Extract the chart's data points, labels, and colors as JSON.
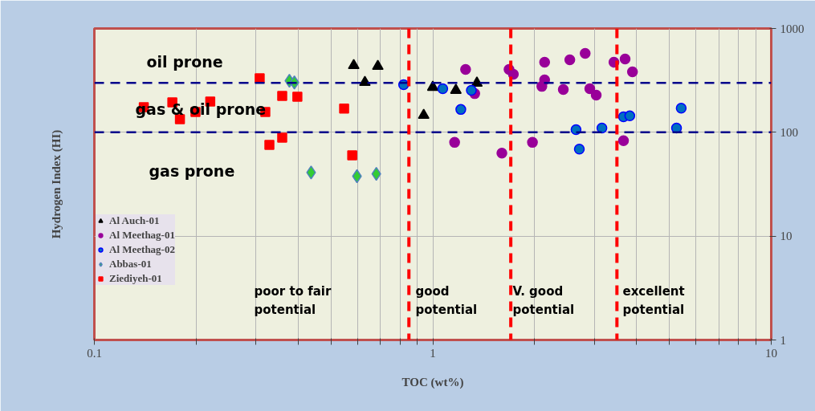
{
  "chart_data": {
    "type": "scatter",
    "xlabel": "TOC (wt%)",
    "ylabel": "Hydrogen Index (HI)",
    "log": "xy",
    "grid": true,
    "legend": "left",
    "xlim": [
      0.1,
      10
    ],
    "ylim": [
      1,
      1000
    ],
    "xticks": [
      0.1,
      {
        "value": 0.2,
        "label": null
      },
      {
        "value": 0.3,
        "label": null
      },
      {
        "value": 0.4,
        "label": null
      },
      {
        "value": 0.5,
        "label": null
      },
      {
        "value": 0.6,
        "label": null
      },
      {
        "value": 0.7,
        "label": null
      },
      {
        "value": 0.8,
        "label": null
      },
      {
        "value": 0.9,
        "label": null
      },
      1,
      {
        "value": 2,
        "label": null
      },
      {
        "value": 3,
        "label": null
      },
      {
        "value": 4,
        "label": null
      },
      {
        "value": 5,
        "label": null
      },
      {
        "value": 6,
        "label": null
      },
      {
        "value": 7,
        "label": null
      },
      {
        "value": 8,
        "label": null
      },
      {
        "value": 9,
        "label": null
      },
      10
    ],
    "yticks": [
      1,
      10,
      100,
      1000
    ],
    "series": [
      {
        "name": "Al Auch-01",
        "color": "#000000",
        "marker": "triangle",
        "x": [
          0.584,
          0.688,
          0.63,
          0.94,
          1.0,
          1.17,
          1.35
        ],
        "values": [
          440,
          433,
          303,
          146,
          272,
          254,
          298
        ]
      },
      {
        "name": "Al Meethag-01",
        "color": "#990099",
        "marker": "circle",
        "x": [
          1.25,
          1.68,
          1.73,
          2.14,
          2.54,
          2.82,
          3.43,
          3.7,
          3.89,
          2.14,
          2.1,
          2.43,
          2.91,
          3.04,
          1.33,
          1.16,
          1.6,
          1.97,
          3.66
        ],
        "values": [
          403,
          403,
          362,
          473,
          499,
          575,
          473,
          508,
          382,
          320,
          277,
          258,
          263,
          228,
          236,
          80,
          63,
          80,
          83
        ]
      },
      {
        "name": "Al Meethag-02",
        "color": "#0070c0",
        "marker": "circle",
        "x": [
          0.82,
          1.07,
          1.3,
          1.21,
          2.65,
          2.71,
          3.16,
          3.66,
          3.82,
          5.42,
          5.25
        ],
        "values": [
          288,
          263,
          254,
          166,
          106,
          69,
          110,
          141,
          144,
          171,
          110
        ]
      },
      {
        "name": "Abbas-01",
        "color": "#33cc33",
        "marker": "diamond",
        "x": [
          0.377,
          0.39,
          0.437,
          0.597,
          0.681
        ],
        "values": [
          314,
          302,
          41,
          37.8,
          39.8
        ]
      },
      {
        "name": "Ziediyeh-01",
        "color": "#ff0000",
        "marker": "square",
        "x": [
          0.308,
          0.359,
          0.398,
          0.547,
          0.17,
          0.22,
          0.14,
          0.199,
          0.179,
          0.32,
          0.359,
          0.329,
          0.578
        ],
        "values": [
          331,
          224,
          220,
          169,
          194,
          198,
          175,
          157,
          134,
          157,
          88.7,
          75.6,
          60
        ]
      }
    ],
    "ref_lines": [
      {
        "axis": "y",
        "value": 300,
        "color": "#00008b",
        "line_style": "dashed"
      },
      {
        "axis": "y",
        "value": 100,
        "color": "#00008b",
        "line_style": "dashed"
      },
      {
        "axis": "x",
        "value": 0.85,
        "color": "#ff0000",
        "line_style": "dashed"
      },
      {
        "axis": "x",
        "value": 1.7,
        "color": "#ff0000",
        "line_style": "dashed"
      },
      {
        "axis": "x",
        "value": 3.5,
        "color": "#ff0000",
        "line_style": "dashed"
      }
    ],
    "annotations": [
      "oil prone",
      "gas & oil prone",
      "gas prone",
      "poor to fair\npotential",
      "good\npotential",
      "V. good\npotential",
      "excellent\npotential"
    ]
  }
}
